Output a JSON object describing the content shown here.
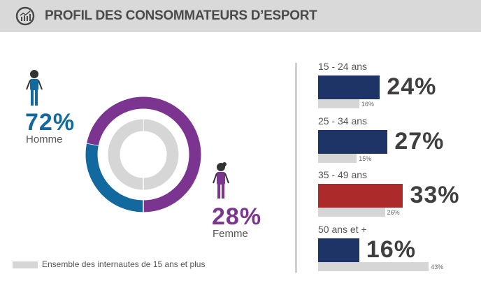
{
  "header": {
    "title": "PROFIL DES CONSOMMATEURS D’ESPORT",
    "icon": "chart-growth-icon"
  },
  "colors": {
    "homme": "#11699f",
    "femme": "#7b3590",
    "bar": "#1f3466",
    "bar_highlight": "#ad2a2a",
    "reference": "#d6d6d6"
  },
  "legend": {
    "reference_label": "Ensemble des internautes de 15 ans et plus"
  },
  "chart_data": [
    {
      "type": "pie",
      "variant": "donut",
      "categories": [
        "Homme",
        "Femme"
      ],
      "series": [
        {
          "values": [
            72,
            28
          ],
          "labels": [
            "72%",
            "28%"
          ]
        },
        {
          "name": "Ensemble des internautes de 15 ans et plus",
          "values": [
            50,
            50
          ]
        }
      ]
    },
    {
      "type": "bar",
      "orientation": "horizontal",
      "categories": [
        "15 - 24 ans",
        "25 - 34 ans",
        "35 - 49 ans",
        "50 ans et +"
      ],
      "series": [
        {
          "values": [
            24,
            27,
            33,
            16
          ],
          "labels": [
            "24%",
            "27%",
            "33%",
            "16%"
          ],
          "highlight_index": 2
        },
        {
          "name": "Ensemble des internautes de 15 ans et plus",
          "values": [
            16,
            15,
            26,
            43
          ],
          "labels": [
            "16%",
            "15%",
            "26%",
            "43%"
          ]
        }
      ]
    }
  ]
}
